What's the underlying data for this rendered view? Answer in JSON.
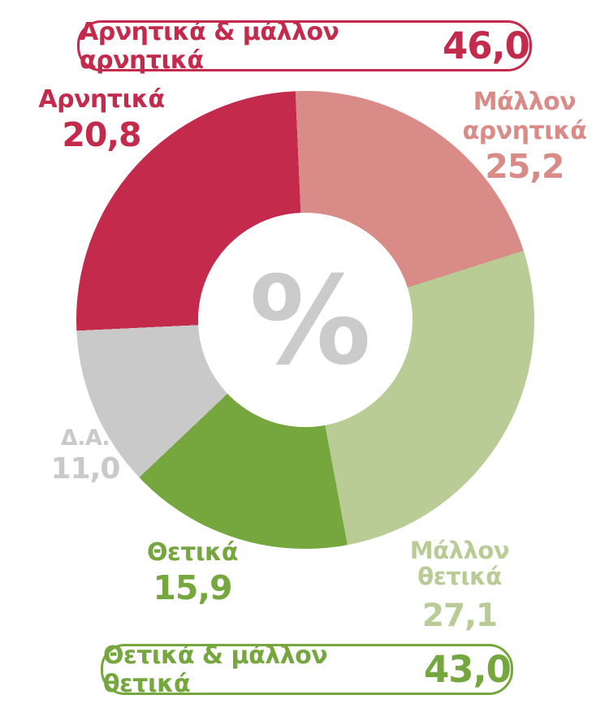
{
  "top_banner": {
    "label": "Αρνητικά & μάλλον αρνητικά",
    "value": "46,0",
    "color": "#c32a4c"
  },
  "bottom_banner": {
    "label": "Θετικά & μάλλον θετικά",
    "value": "43,0",
    "color": "#76a73e"
  },
  "center_symbol": "%",
  "chart_data": {
    "type": "pie",
    "donut": true,
    "inner_radius_ratio": 0.47,
    "start_angle_deg": -2.5,
    "clockwise": true,
    "slices": [
      {
        "label": "Μάλλον αρνητικά",
        "value": 25.2,
        "value_label": "25,2",
        "color": "#d98b88",
        "visual_sweep_deg": 74.9
      },
      {
        "label": "Μάλλον θετικά",
        "value": 27.1,
        "value_label": "27,1",
        "color": "#b9cc95",
        "visual_sweep_deg": 97.0
      },
      {
        "label": "Θετικά",
        "value": 15.9,
        "value_label": "15,9",
        "color": "#76a73e",
        "visual_sweep_deg": 57.1
      },
      {
        "label": "Δ.Α.",
        "value": 11.0,
        "value_label": "11,0",
        "color": "#c9c9c9",
        "visual_sweep_deg": 40.8
      },
      {
        "label": "Αρνητικά",
        "value": 20.8,
        "value_label": "20,8",
        "color": "#c32a4c",
        "visual_sweep_deg": 90.2
      }
    ],
    "totals": [
      {
        "label": "Αρνητικά & μάλλον αρνητικά",
        "value": 46.0,
        "value_label": "46,0"
      },
      {
        "label": "Θετικά & μάλλον θετικά",
        "value": 43.0,
        "value_label": "43,0"
      }
    ],
    "center_label": "%",
    "legend": "none"
  }
}
